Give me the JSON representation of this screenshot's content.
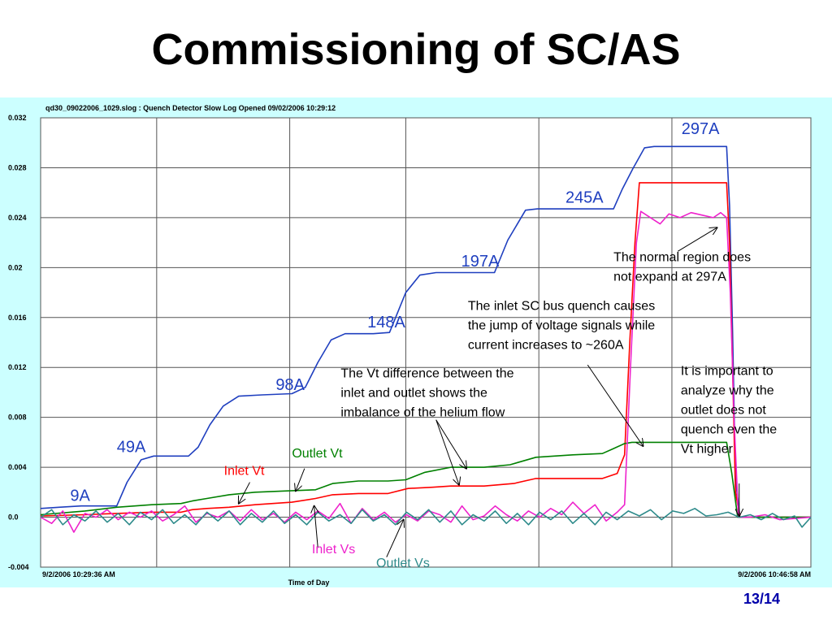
{
  "slide": {
    "title": "Commissioning of SC/AS",
    "page_number": "13/14"
  },
  "chart_data": {
    "type": "line",
    "header": "qd30_09022006_1029.slog : Quench Detector Slow Log Opened 09/02/2006 10:29:12",
    "xlabel": "Time of Day",
    "x_start_label": "9/2/2006 10:29:36 AM",
    "x_end_label": "9/2/2006 10:46:58 AM",
    "x_range": [
      0,
      1042
    ],
    "x_units": "seconds from 10:29:36",
    "ylim": [
      -0.004,
      0.032
    ],
    "y_ticks": [
      "0.032",
      "0.028",
      "0.024",
      "0.02",
      "0.016",
      "0.012",
      "0.008",
      "0.004",
      "0.0",
      "-0.004"
    ],
    "y_tick_values": [
      0.032,
      0.028,
      0.024,
      0.02,
      0.016,
      0.012,
      0.008,
      0.004,
      0.0,
      -0.004
    ],
    "x_gridlines": [
      0,
      157,
      337,
      494,
      674,
      854,
      1042
    ],
    "grid": true,
    "series": [
      {
        "key": "current",
        "color": "#1f3fbf",
        "points": [
          [
            0,
            0.0007
          ],
          [
            25,
            0.0008
          ],
          [
            55,
            0.0009
          ],
          [
            103,
            0.0009
          ],
          [
            117,
            0.0028
          ],
          [
            136,
            0.0046
          ],
          [
            153,
            0.0049
          ],
          [
            170,
            0.0049
          ],
          [
            200,
            0.0049
          ],
          [
            213,
            0.0056
          ],
          [
            229,
            0.0074
          ],
          [
            247,
            0.0089
          ],
          [
            268,
            0.0097
          ],
          [
            300,
            0.0098
          ],
          [
            340,
            0.0099
          ],
          [
            358,
            0.0104
          ],
          [
            375,
            0.0124
          ],
          [
            393,
            0.0142
          ],
          [
            412,
            0.0147
          ],
          [
            450,
            0.0147
          ],
          [
            472,
            0.0148
          ],
          [
            494,
            0.018
          ],
          [
            513,
            0.0194
          ],
          [
            535,
            0.0196
          ],
          [
            585,
            0.0196
          ],
          [
            614,
            0.0196
          ],
          [
            632,
            0.0222
          ],
          [
            656,
            0.0246
          ],
          [
            672,
            0.0247
          ],
          [
            720,
            0.0247
          ],
          [
            775,
            0.0247
          ],
          [
            787,
            0.0263
          ],
          [
            801,
            0.0279
          ],
          [
            817,
            0.0296
          ],
          [
            830,
            0.0297
          ],
          [
            900,
            0.0297
          ],
          [
            928,
            0.0297
          ],
          [
            932,
            0.025
          ],
          [
            936,
            0.015
          ],
          [
            940,
            0.003
          ],
          [
            946,
            0.0
          ],
          [
            990,
            0.0
          ],
          [
            1042,
            0.0
          ]
        ]
      },
      {
        "key": "inlet_vt",
        "color": "#ff0000",
        "points": [
          [
            0,
            0.0001
          ],
          [
            60,
            0.0002
          ],
          [
            103,
            0.0003
          ],
          [
            150,
            0.0004
          ],
          [
            190,
            0.0004
          ],
          [
            205,
            0.0006
          ],
          [
            225,
            0.0007
          ],
          [
            255,
            0.0008
          ],
          [
            290,
            0.001
          ],
          [
            340,
            0.0012
          ],
          [
            372,
            0.0015
          ],
          [
            395,
            0.0018
          ],
          [
            430,
            0.0019
          ],
          [
            470,
            0.0019
          ],
          [
            497,
            0.0023
          ],
          [
            530,
            0.0024
          ],
          [
            555,
            0.0025
          ],
          [
            600,
            0.0025
          ],
          [
            640,
            0.0027
          ],
          [
            670,
            0.0031
          ],
          [
            720,
            0.0031
          ],
          [
            760,
            0.0031
          ],
          [
            780,
            0.0035
          ],
          [
            790,
            0.005
          ],
          [
            797,
            0.014
          ],
          [
            804,
            0.022
          ],
          [
            810,
            0.0268
          ],
          [
            840,
            0.0268
          ],
          [
            928,
            0.0268
          ],
          [
            932,
            0.022
          ],
          [
            936,
            0.012
          ],
          [
            940,
            0.002
          ],
          [
            946,
            0.0
          ],
          [
            1042,
            0.0
          ]
        ]
      },
      {
        "key": "outlet_vt",
        "color": "#008000",
        "points": [
          [
            0,
            0.0002
          ],
          [
            60,
            0.0005
          ],
          [
            103,
            0.0008
          ],
          [
            150,
            0.001
          ],
          [
            190,
            0.0011
          ],
          [
            205,
            0.0013
          ],
          [
            225,
            0.0015
          ],
          [
            255,
            0.0018
          ],
          [
            290,
            0.002
          ],
          [
            330,
            0.0021
          ],
          [
            372,
            0.0022
          ],
          [
            395,
            0.0027
          ],
          [
            430,
            0.0029
          ],
          [
            470,
            0.0029
          ],
          [
            494,
            0.003
          ],
          [
            520,
            0.0036
          ],
          [
            555,
            0.004
          ],
          [
            600,
            0.004
          ],
          [
            635,
            0.0042
          ],
          [
            670,
            0.0048
          ],
          [
            720,
            0.005
          ],
          [
            760,
            0.0051
          ],
          [
            775,
            0.0055
          ],
          [
            790,
            0.0059
          ],
          [
            800,
            0.006
          ],
          [
            870,
            0.006
          ],
          [
            900,
            0.006
          ],
          [
            928,
            0.006
          ],
          [
            935,
            0.0035
          ],
          [
            943,
            0.0
          ],
          [
            1042,
            0.0
          ]
        ]
      },
      {
        "key": "inlet_vs",
        "color": "#ee22cc",
        "points": [
          [
            0,
            0.0
          ],
          [
            15,
            -0.0005
          ],
          [
            30,
            0.0005
          ],
          [
            45,
            -0.0012
          ],
          [
            60,
            0.0003
          ],
          [
            75,
            0.0
          ],
          [
            90,
            0.0006
          ],
          [
            105,
            -0.0002
          ],
          [
            120,
            0.0004
          ],
          [
            135,
            0.0
          ],
          [
            150,
            0.0005
          ],
          [
            165,
            -0.0003
          ],
          [
            180,
            0.0002
          ],
          [
            195,
            0.0009
          ],
          [
            210,
            -0.0004
          ],
          [
            225,
            0.0003
          ],
          [
            240,
            0.0
          ],
          [
            255,
            0.0005
          ],
          [
            270,
            -0.0003
          ],
          [
            285,
            0.0006
          ],
          [
            300,
            -0.0002
          ],
          [
            315,
            0.0003
          ],
          [
            330,
            -0.0004
          ],
          [
            345,
            0.0004
          ],
          [
            360,
            -0.0002
          ],
          [
            375,
            0.0005
          ],
          [
            390,
            -0.0001
          ],
          [
            405,
            0.0011
          ],
          [
            420,
            -0.0005
          ],
          [
            435,
            0.0007
          ],
          [
            450,
            -0.0002
          ],
          [
            465,
            0.0004
          ],
          [
            480,
            -0.0004
          ],
          [
            495,
            0.0002
          ],
          [
            510,
            -0.0003
          ],
          [
            525,
            0.0005
          ],
          [
            540,
            0.0002
          ],
          [
            555,
            -0.0004
          ],
          [
            570,
            0.0009
          ],
          [
            585,
            -0.0002
          ],
          [
            600,
            0.0001
          ],
          [
            615,
            0.0009
          ],
          [
            630,
            0.0002
          ],
          [
            645,
            -0.0003
          ],
          [
            660,
            0.0005
          ],
          [
            675,
            0.0
          ],
          [
            690,
            0.0007
          ],
          [
            705,
            0.0002
          ],
          [
            720,
            0.0012
          ],
          [
            735,
            0.0003
          ],
          [
            750,
            0.001
          ],
          [
            765,
            -0.0003
          ],
          [
            780,
            0.0004
          ],
          [
            790,
            0.001
          ],
          [
            798,
            0.012
          ],
          [
            806,
            0.022
          ],
          [
            812,
            0.0245
          ],
          [
            825,
            0.024
          ],
          [
            838,
            0.0235
          ],
          [
            850,
            0.0243
          ],
          [
            865,
            0.024
          ],
          [
            880,
            0.0244
          ],
          [
            895,
            0.0242
          ],
          [
            910,
            0.024
          ],
          [
            920,
            0.0244
          ],
          [
            928,
            0.024
          ],
          [
            933,
            0.018
          ],
          [
            938,
            0.008
          ],
          [
            944,
            0.0
          ],
          [
            960,
            0.0
          ],
          [
            980,
            0.0002
          ],
          [
            1000,
            -0.0002
          ],
          [
            1042,
            0.0
          ]
        ]
      },
      {
        "key": "outlet_vs",
        "color": "#2e8b8b",
        "points": [
          [
            0,
            0.0
          ],
          [
            15,
            0.0006
          ],
          [
            30,
            -0.0006
          ],
          [
            45,
            0.0002
          ],
          [
            60,
            -0.0003
          ],
          [
            75,
            0.0005
          ],
          [
            90,
            -0.0004
          ],
          [
            105,
            0.0003
          ],
          [
            120,
            -0.0006
          ],
          [
            135,
            0.0004
          ],
          [
            150,
            -0.0002
          ],
          [
            165,
            0.0006
          ],
          [
            180,
            -0.0005
          ],
          [
            195,
            0.0002
          ],
          [
            210,
            -0.0006
          ],
          [
            225,
            0.0004
          ],
          [
            240,
            -0.0003
          ],
          [
            255,
            0.0005
          ],
          [
            270,
            -0.0006
          ],
          [
            285,
            0.0003
          ],
          [
            300,
            -0.0004
          ],
          [
            315,
            0.0005
          ],
          [
            330,
            -0.0005
          ],
          [
            345,
            0.0002
          ],
          [
            360,
            -0.0006
          ],
          [
            375,
            0.0004
          ],
          [
            390,
            -0.0003
          ],
          [
            405,
            0.0002
          ],
          [
            420,
            -0.0005
          ],
          [
            435,
            0.0006
          ],
          [
            450,
            -0.0003
          ],
          [
            465,
            0.0002
          ],
          [
            480,
            -0.0006
          ],
          [
            495,
            0.0004
          ],
          [
            510,
            -0.0002
          ],
          [
            525,
            0.0006
          ],
          [
            540,
            -0.0004
          ],
          [
            555,
            0.0005
          ],
          [
            570,
            -0.0006
          ],
          [
            585,
            0.0002
          ],
          [
            600,
            -0.0003
          ],
          [
            615,
            0.0005
          ],
          [
            630,
            -0.0005
          ],
          [
            645,
            0.0003
          ],
          [
            660,
            -0.0006
          ],
          [
            675,
            0.0004
          ],
          [
            690,
            -0.0002
          ],
          [
            705,
            0.0005
          ],
          [
            720,
            -0.0005
          ],
          [
            735,
            0.0003
          ],
          [
            750,
            -0.0006
          ],
          [
            765,
            0.0004
          ],
          [
            780,
            -0.0002
          ],
          [
            795,
            0.0005
          ],
          [
            810,
            0.0001
          ],
          [
            825,
            0.0006
          ],
          [
            840,
            -0.0002
          ],
          [
            855,
            0.0005
          ],
          [
            870,
            0.0003
          ],
          [
            885,
            0.0007
          ],
          [
            900,
            0.0001
          ],
          [
            915,
            0.0002
          ],
          [
            930,
            0.0004
          ],
          [
            945,
            0.0
          ],
          [
            960,
            0.0002
          ],
          [
            975,
            -0.0002
          ],
          [
            990,
            0.0003
          ],
          [
            1005,
            -0.0002
          ],
          [
            1020,
            0.0001
          ],
          [
            1030,
            -0.0008
          ],
          [
            1042,
            0.0
          ]
        ]
      }
    ],
    "current_labels": [
      {
        "text": "9A",
        "x": 40,
        "y": 0.0013
      },
      {
        "text": "49A",
        "x": 103,
        "y": 0.0052
      },
      {
        "text": "98A",
        "x": 318,
        "y": 0.0102
      },
      {
        "text": "148A",
        "x": 442,
        "y": 0.0152
      },
      {
        "text": "197A",
        "x": 569,
        "y": 0.0201
      },
      {
        "text": "245A",
        "x": 710,
        "y": 0.0252
      },
      {
        "text": "297A",
        "x": 867,
        "y": 0.0307
      }
    ],
    "series_labels": [
      {
        "text": "Outlet Vt",
        "color": "#008000",
        "x": 340,
        "y": 0.0048
      },
      {
        "text": "Inlet Vt",
        "color": "#ff0000",
        "x": 248,
        "y": 0.0034
      },
      {
        "text": "Inlet Vs",
        "color": "#ee22cc",
        "x": 367,
        "y": -0.0029
      },
      {
        "text": "Outlet Vs",
        "color": "#2e8b8b",
        "x": 454,
        "y": -0.004
      }
    ],
    "annotations": [
      {
        "lines": [
          "The normal region does",
          "not expand at 297A"
        ],
        "x": 775,
        "y": 0.0205
      },
      {
        "lines": [
          "The inlet SC bus quench causes",
          "the jump of voltage signals while",
          "current increases to ~260A"
        ],
        "x": 578,
        "y": 0.0166
      },
      {
        "lines": [
          "The Vt difference between the",
          "inlet and outlet shows the",
          "imbalance of the helium flow"
        ],
        "x": 406,
        "y": 0.0112
      },
      {
        "lines": [
          "It is important to",
          "analyze why the",
          "outlet does not",
          "quench even the",
          "Vt higher"
        ],
        "x": 866,
        "y": 0.0114
      }
    ],
    "arrows": [
      {
        "from": [
          862,
          0.0213
        ],
        "to": [
          915,
          0.0232
        ]
      },
      {
        "from": [
          740,
          0.0122
        ],
        "to": [
          815,
          0.0057
        ]
      },
      {
        "from": [
          535,
          0.0078
        ],
        "to": [
          566,
          0.0026
        ]
      },
      {
        "from": [
          535,
          0.0078
        ],
        "to": [
          576,
          0.0039
        ]
      },
      {
        "from": [
          945,
          0.0027
        ],
        "to": [
          945,
          0.0001
        ]
      },
      {
        "from": [
          283,
          0.0028
        ],
        "to": [
          268,
          0.0011
        ]
      },
      {
        "from": [
          357,
          0.0039
        ],
        "to": [
          345,
          0.0021
        ]
      },
      {
        "from": [
          375,
          -0.0024
        ],
        "to": [
          370,
          0.0009
        ]
      },
      {
        "from": [
          468,
          -0.0032
        ],
        "to": [
          491,
          -0.0002
        ]
      }
    ]
  }
}
